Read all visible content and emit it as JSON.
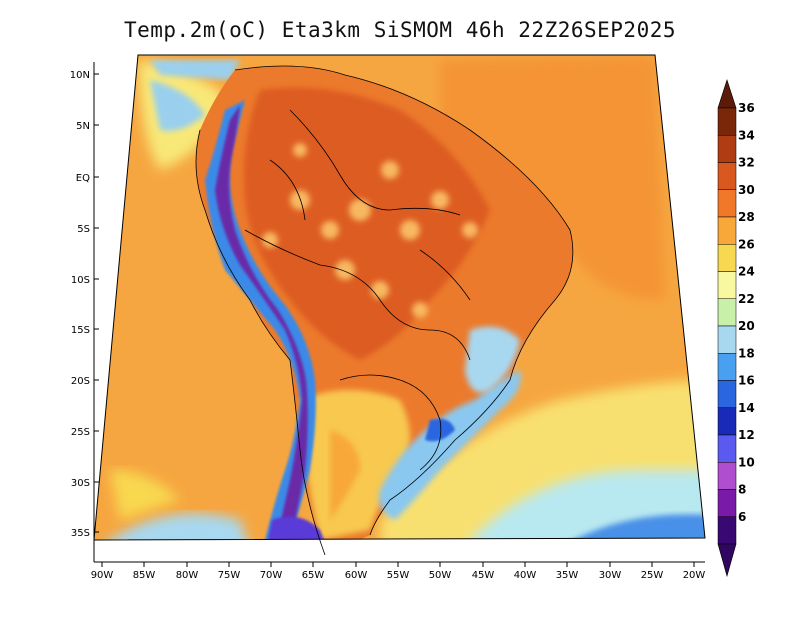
{
  "title": "Temp.2m(oC) Eta3km SiSMOM 46h 22Z26SEP2025",
  "lat_labels": [
    "10N",
    "5N",
    "EQ",
    "5S",
    "10S",
    "15S",
    "20S",
    "25S",
    "30S",
    "35S"
  ],
  "lon_labels": [
    "90W",
    "85W",
    "80W",
    "75W",
    "70W",
    "65W",
    "60W",
    "55W",
    "50W",
    "45W",
    "40W",
    "35W",
    "30W",
    "25W",
    "20W"
  ],
  "colorbar": {
    "labels": [
      "6",
      "8",
      "10",
      "12",
      "14",
      "16",
      "18",
      "20",
      "22",
      "24",
      "26",
      "28",
      "30",
      "32",
      "34",
      "36"
    ],
    "colors": [
      "#3a0873",
      "#7a1aa8",
      "#b04ed0",
      "#5a5af0",
      "#1a2ab8",
      "#2a66e0",
      "#4aa0f0",
      "#a8d8f0",
      "#c8f0a8",
      "#f8f8a0",
      "#f8d850",
      "#f8a838",
      "#f07828",
      "#d85820",
      "#b03c14",
      "#7a2608"
    ],
    "over_color": "#5c1a08",
    "under_color": "#300660"
  },
  "colors": {
    "ocean_warm": "#f49e3c",
    "ocean_cool": "#f6e070",
    "land_hot": "#e46a28",
    "andes_cold": "#6a2aa8"
  }
}
